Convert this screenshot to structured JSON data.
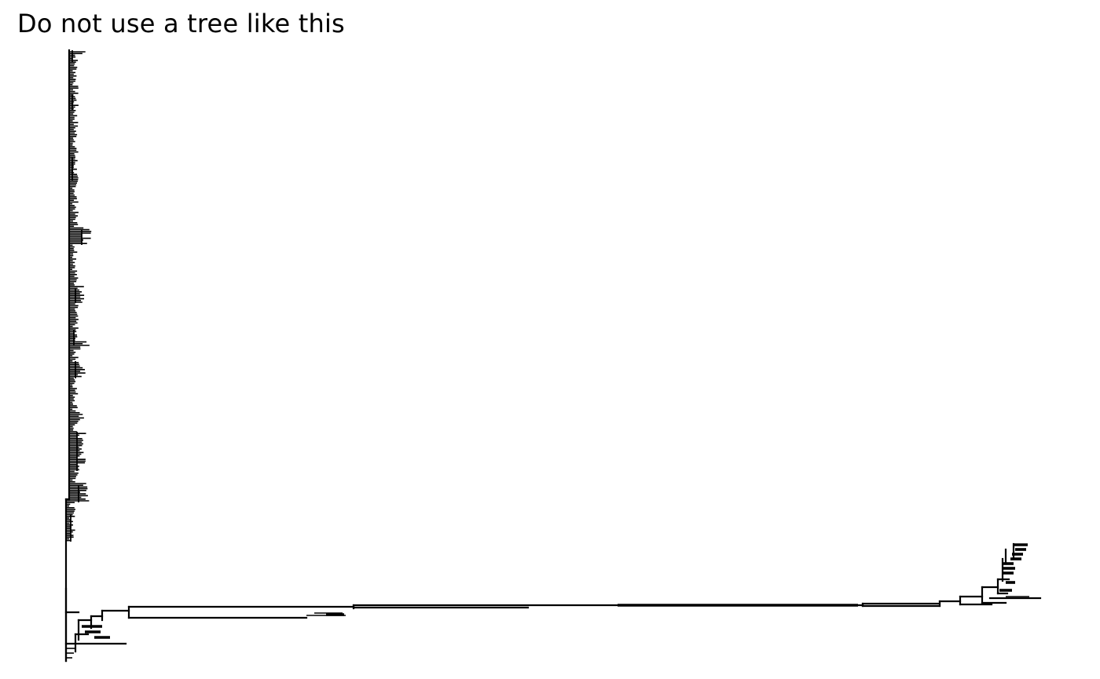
{
  "title": "Do not use a tree like this",
  "diagram": {
    "type": "phylogenetic-tree",
    "layout": "rectangular",
    "color": "#000000",
    "tip_labels_shown": false
  }
}
